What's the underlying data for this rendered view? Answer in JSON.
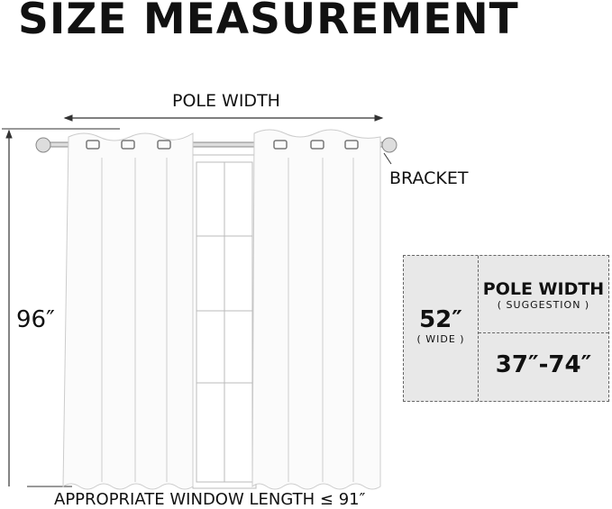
{
  "title": "SIZE MEASUREMENT",
  "labels": {
    "pole_width": "POLE WIDTH",
    "bracket": "BRACKET",
    "height": "96″",
    "window_length": "APPROPRIATE WINDOW LENGTH ≤ 91″"
  },
  "size_box": {
    "width_value": "52″",
    "width_note": "( WIDE )",
    "pole_title": "POLE WIDTH",
    "pole_note": "( SUGGESTION )",
    "pole_range": "37″-74″"
  },
  "colors": {
    "box_fill": "#e8e8e8",
    "box_border": "#666666",
    "text": "#111111"
  }
}
